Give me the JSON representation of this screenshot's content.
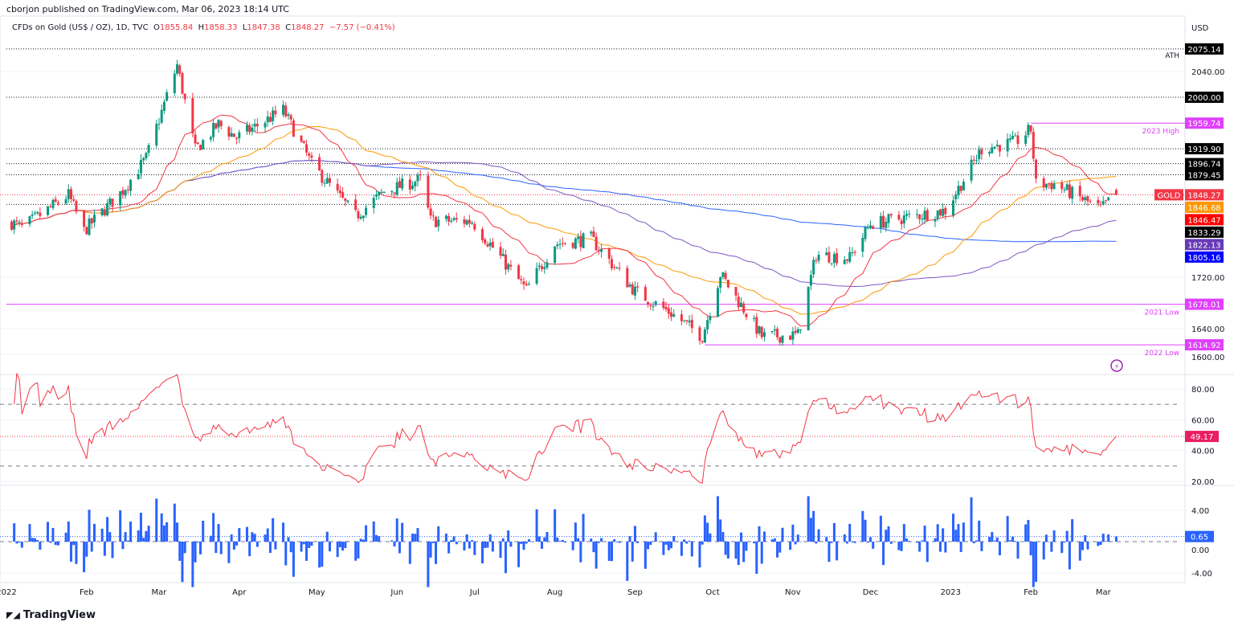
{
  "publisher": "cborjon published on TradingView.com, Mar 06, 2023 18:14 UTC",
  "header": {
    "symbol": "CFDs on Gold (US$ / OZ), 1D, TVC",
    "o_label": "O",
    "open": "1855.84",
    "h_label": "H",
    "high": "1858.33",
    "l_label": "L",
    "low": "1847.38",
    "c_label": "C",
    "close": "1848.27",
    "change": "−7.57 (−0.41%)"
  },
  "footer": {
    "brand": "TradingView"
  },
  "colors": {
    "up": "#089981",
    "down": "#f23645",
    "sma20": "#f23645",
    "sma50": "#ff9800",
    "sma100": "#7e57c2",
    "sma200": "#2962ff",
    "magenta": "#e040fb",
    "rsi": "#f23645",
    "mom": "#2962ff"
  },
  "chart_data": {
    "type": "candlestick",
    "currency": "USD",
    "price_ticks": [
      2040,
      1720,
      1640,
      1600
    ],
    "x_labels": [
      {
        "d": "2022-01-01",
        "t": "2022"
      },
      {
        "d": "2022-02-01",
        "t": "Feb"
      },
      {
        "d": "2022-03-01",
        "t": "Mar"
      },
      {
        "d": "2022-04-01",
        "t": "Apr"
      },
      {
        "d": "2022-05-01",
        "t": "May"
      },
      {
        "d": "2022-06-01",
        "t": "Jun"
      },
      {
        "d": "2022-07-01",
        "t": "Jul"
      },
      {
        "d": "2022-08-01",
        "t": "Aug"
      },
      {
        "d": "2022-09-01",
        "t": "Sep"
      },
      {
        "d": "2022-10-01",
        "t": "Oct"
      },
      {
        "d": "2022-11-01",
        "t": "Nov"
      },
      {
        "d": "2022-12-01",
        "t": "Dec"
      },
      {
        "d": "2023-01-01",
        "t": "2023"
      },
      {
        "d": "2023-02-01",
        "t": "Feb"
      },
      {
        "d": "2023-03-01",
        "t": "Mar"
      }
    ],
    "close_keypoints": [
      [
        "2022-01-03",
        "1805"
      ],
      [
        "2022-01-07",
        "1797"
      ],
      [
        "2022-01-25",
        "1848"
      ],
      [
        "2022-01-31",
        "1792"
      ],
      [
        "2022-02-15",
        "1855"
      ],
      [
        "2022-02-24",
        "1905"
      ],
      [
        "2022-03-08",
        "2050"
      ],
      [
        "2022-03-15",
        "1918"
      ],
      [
        "2022-03-24",
        "1958"
      ],
      [
        "2022-03-31",
        "1937"
      ],
      [
        "2022-04-18",
        "1980"
      ],
      [
        "2022-04-29",
        "1896"
      ],
      [
        "2022-05-16",
        "1815"
      ],
      [
        "2022-05-27",
        "1853"
      ],
      [
        "2022-06-10",
        "1872"
      ],
      [
        "2022-06-14",
        "1808"
      ],
      [
        "2022-06-30",
        "1807"
      ],
      [
        "2022-07-21",
        "1700"
      ],
      [
        "2022-08-01",
        "1772"
      ],
      [
        "2022-08-15",
        "1780"
      ],
      [
        "2022-09-01",
        "1698"
      ],
      [
        "2022-09-15",
        "1664"
      ],
      [
        "2022-09-27",
        "1628"
      ],
      [
        "2022-10-04",
        "1725"
      ],
      [
        "2022-10-20",
        "1628"
      ],
      [
        "2022-11-03",
        "1630"
      ],
      [
        "2022-11-10",
        "1755"
      ],
      [
        "2022-11-23",
        "1750"
      ],
      [
        "2022-12-01",
        "1803"
      ],
      [
        "2022-12-30",
        "1824"
      ],
      [
        "2023-01-13",
        "1920"
      ],
      [
        "2023-01-26",
        "1930"
      ],
      [
        "2023-02-01",
        "1950"
      ],
      [
        "2023-02-03",
        "1865"
      ],
      [
        "2023-02-10",
        "1865"
      ],
      [
        "2023-02-28",
        "1826"
      ],
      [
        "2023-03-06",
        "1848"
      ]
    ],
    "levels": [
      {
        "price": 2075.14,
        "label": "2075.14",
        "note": "ATH",
        "style": "dotted",
        "from": "2022-01-01"
      },
      {
        "price": 2000.0,
        "label": "2000.00",
        "note": "",
        "style": "dotted",
        "from": "2022-01-01"
      },
      {
        "price": 1959.74,
        "label": "1959.74",
        "note": "2023 High",
        "style": "magenta",
        "from": "2023-02-01"
      },
      {
        "price": 1919.9,
        "label": "1919.90",
        "note": "",
        "style": "dotted",
        "from": "2022-01-01"
      },
      {
        "price": 1896.74,
        "label": "1896.74",
        "note": "",
        "style": "dotted",
        "from": "2022-01-01"
      },
      {
        "price": 1879.45,
        "label": "1879.45",
        "note": "",
        "style": "dotted",
        "from": "2022-01-01"
      },
      {
        "price": 1833.29,
        "label": "1833.29",
        "note": "",
        "style": "dotted",
        "from": "2022-01-01"
      },
      {
        "price": 1678.01,
        "label": "1678.01",
        "note": "2021 Low",
        "style": "magenta",
        "from": "2022-01-01"
      },
      {
        "price": 1614.92,
        "label": "1614.92",
        "note": "2022 Low",
        "style": "magenta",
        "from": "2022-09-28"
      }
    ],
    "price_tags": [
      {
        "label": "GOLD",
        "value": "1848.27",
        "color": "#f23645"
      },
      {
        "value": "1846.68",
        "color": "#ff9800"
      },
      {
        "value": "1846.47",
        "color": "#ff0000"
      },
      {
        "value": "1822.13",
        "color": "#673ab7"
      },
      {
        "value": "1805.16",
        "color": "#0000ff"
      }
    ],
    "rsi": {
      "ticks": [
        80,
        60,
        40,
        20
      ],
      "levels": [
        70,
        30
      ],
      "last": 49.17,
      "last_label": "49.17"
    },
    "momentum": {
      "ticks": [
        4,
        0,
        -4
      ],
      "tick_labels": [
        "4.00",
        "0.00",
        "-4.00"
      ],
      "last": 0.65,
      "last_label": "0.65"
    }
  }
}
